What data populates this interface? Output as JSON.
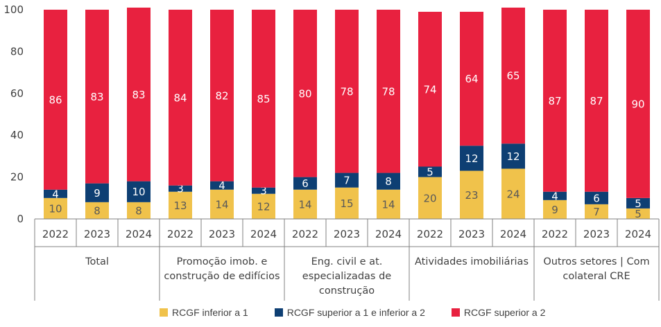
{
  "chart_data": {
    "type": "bar",
    "stacked": true,
    "ylim": [
      0,
      100
    ],
    "yticks": [
      "0",
      "20",
      "40",
      "60",
      "80",
      "100"
    ],
    "groups": [
      {
        "label": [
          "Total"
        ],
        "years": [
          "2022",
          "2023",
          "2024"
        ]
      },
      {
        "label": [
          "Promoção imob. e",
          "construção de edifícios"
        ],
        "years": [
          "2022",
          "2023",
          "2024"
        ]
      },
      {
        "label": [
          "Eng. civil e at.",
          "especializadas de",
          "construção"
        ],
        "years": [
          "2022",
          "2023",
          "2024"
        ]
      },
      {
        "label": [
          "Atividades imobiliárias"
        ],
        "years": [
          "2022",
          "2023",
          "2024"
        ]
      },
      {
        "label": [
          "Outros setores | Com",
          "colateral CRE"
        ],
        "years": [
          "2022",
          "2023",
          "2024"
        ]
      }
    ],
    "series": [
      {
        "name": "RCGF inferior a 1",
        "color": "#f0c24b",
        "label_color": "#595959",
        "values": [
          10,
          8,
          8,
          13,
          14,
          12,
          14,
          15,
          14,
          20,
          23,
          24,
          9,
          7,
          5
        ]
      },
      {
        "name": "RCGF superior a 1 e inferior a 2",
        "color": "#0e3f73",
        "label_color": "#ffffff",
        "values": [
          4,
          9,
          10,
          3,
          4,
          3,
          6,
          7,
          8,
          5,
          12,
          12,
          4,
          6,
          5
        ]
      },
      {
        "name": "RCGF superior a 2",
        "color": "#e8213f",
        "label_color": "#ffffff",
        "values": [
          86,
          83,
          83,
          84,
          82,
          85,
          80,
          78,
          78,
          74,
          64,
          65,
          87,
          87,
          90
        ]
      }
    ],
    "legend_position": "bottom",
    "grid": false
  }
}
